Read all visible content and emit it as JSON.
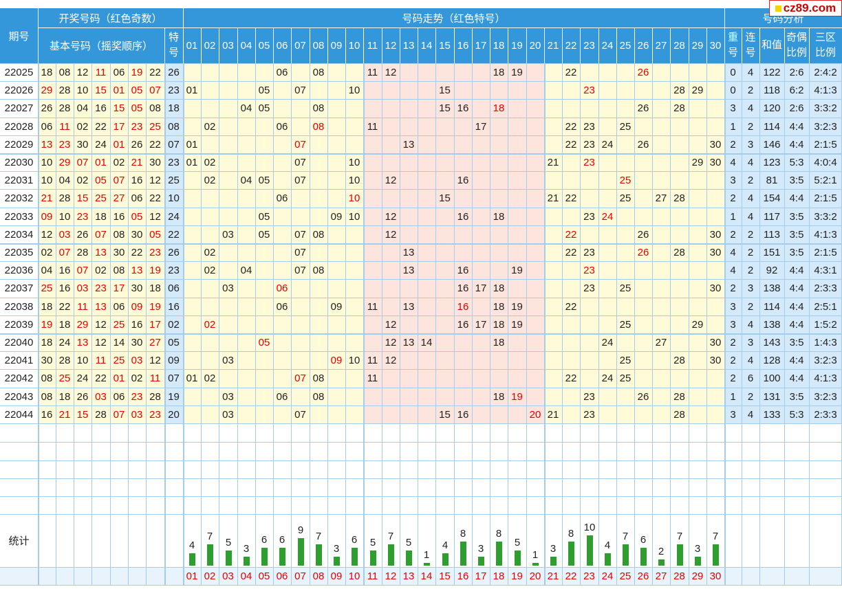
{
  "headers": {
    "period": "期号",
    "draw_group": "开奖号码（红色奇数）",
    "basic_numbers": "基本号码（摇奖顺序）",
    "special": "特号",
    "trend_group": "号码走势（红色特号）",
    "analysis_group": "号码分析",
    "repeat": "重号",
    "consecutive": "连号",
    "sum": "和值",
    "odd_even": "奇偶比例",
    "zone": "三区比例"
  },
  "trend_columns": [
    "01",
    "02",
    "03",
    "04",
    "05",
    "06",
    "07",
    "08",
    "09",
    "10",
    "11",
    "12",
    "13",
    "14",
    "15",
    "16",
    "17",
    "18",
    "19",
    "20",
    "21",
    "22",
    "23",
    "24",
    "25",
    "26",
    "27",
    "28",
    "29",
    "30"
  ],
  "rows": [
    {
      "period": "22025",
      "basic": [
        "18",
        "08",
        "12",
        "11",
        "06",
        "19",
        "22"
      ],
      "special": "26",
      "repeat": "0",
      "consec": "4",
      "sum": "122",
      "oe": "2:6",
      "zone": "2:4:2"
    },
    {
      "period": "22026",
      "basic": [
        "29",
        "28",
        "10",
        "15",
        "01",
        "05",
        "07"
      ],
      "special": "23",
      "repeat": "0",
      "consec": "2",
      "sum": "118",
      "oe": "6:2",
      "zone": "4:1:3"
    },
    {
      "period": "22027",
      "basic": [
        "26",
        "28",
        "04",
        "16",
        "15",
        "05",
        "08"
      ],
      "special": "18",
      "repeat": "3",
      "consec": "4",
      "sum": "120",
      "oe": "2:6",
      "zone": "3:3:2"
    },
    {
      "period": "22028",
      "basic": [
        "06",
        "11",
        "02",
        "22",
        "17",
        "23",
        "25"
      ],
      "special": "08",
      "repeat": "1",
      "consec": "2",
      "sum": "114",
      "oe": "4:4",
      "zone": "3:2:3"
    },
    {
      "period": "22029",
      "basic": [
        "13",
        "23",
        "30",
        "24",
        "01",
        "26",
        "22"
      ],
      "special": "07",
      "repeat": "2",
      "consec": "3",
      "sum": "146",
      "oe": "4:4",
      "zone": "2:1:5"
    },
    {
      "period": "22030",
      "basic": [
        "10",
        "29",
        "07",
        "01",
        "02",
        "21",
        "30"
      ],
      "special": "23",
      "repeat": "4",
      "consec": "4",
      "sum": "123",
      "oe": "5:3",
      "zone": "4:0:4"
    },
    {
      "period": "22031",
      "basic": [
        "10",
        "04",
        "02",
        "05",
        "07",
        "16",
        "12"
      ],
      "special": "25",
      "repeat": "3",
      "consec": "2",
      "sum": "81",
      "oe": "3:5",
      "zone": "5:2:1"
    },
    {
      "period": "22032",
      "basic": [
        "21",
        "28",
        "15",
        "25",
        "27",
        "06",
        "22"
      ],
      "special": "10",
      "repeat": "2",
      "consec": "4",
      "sum": "154",
      "oe": "4:4",
      "zone": "2:1:5"
    },
    {
      "period": "22033",
      "basic": [
        "09",
        "10",
        "23",
        "18",
        "16",
        "05",
        "12"
      ],
      "special": "24",
      "repeat": "1",
      "consec": "4",
      "sum": "117",
      "oe": "3:5",
      "zone": "3:3:2"
    },
    {
      "period": "22034",
      "basic": [
        "12",
        "03",
        "26",
        "07",
        "08",
        "30",
        "05"
      ],
      "special": "22",
      "repeat": "2",
      "consec": "2",
      "sum": "113",
      "oe": "3:5",
      "zone": "4:1:3"
    },
    {
      "period": "22035",
      "basic": [
        "02",
        "07",
        "28",
        "13",
        "30",
        "22",
        "23"
      ],
      "special": "26",
      "repeat": "4",
      "consec": "2",
      "sum": "151",
      "oe": "3:5",
      "zone": "2:1:5"
    },
    {
      "period": "22036",
      "basic": [
        "04",
        "16",
        "07",
        "02",
        "08",
        "13",
        "19"
      ],
      "special": "23",
      "repeat": "4",
      "consec": "2",
      "sum": "92",
      "oe": "4:4",
      "zone": "4:3:1"
    },
    {
      "period": "22037",
      "basic": [
        "25",
        "16",
        "03",
        "23",
        "17",
        "30",
        "18"
      ],
      "special": "06",
      "repeat": "2",
      "consec": "3",
      "sum": "138",
      "oe": "4:4",
      "zone": "2:3:3"
    },
    {
      "period": "22038",
      "basic": [
        "18",
        "22",
        "11",
        "13",
        "06",
        "09",
        "19"
      ],
      "special": "16",
      "repeat": "3",
      "consec": "2",
      "sum": "114",
      "oe": "4:4",
      "zone": "2:5:1"
    },
    {
      "period": "22039",
      "basic": [
        "19",
        "18",
        "29",
        "12",
        "25",
        "16",
        "17"
      ],
      "special": "02",
      "repeat": "3",
      "consec": "4",
      "sum": "138",
      "oe": "4:4",
      "zone": "1:5:2"
    },
    {
      "period": "22040",
      "basic": [
        "18",
        "24",
        "13",
        "12",
        "14",
        "30",
        "27"
      ],
      "special": "05",
      "repeat": "2",
      "consec": "3",
      "sum": "143",
      "oe": "3:5",
      "zone": "1:4:3"
    },
    {
      "period": "22041",
      "basic": [
        "30",
        "28",
        "10",
        "11",
        "25",
        "03",
        "12"
      ],
      "special": "09",
      "repeat": "2",
      "consec": "4",
      "sum": "128",
      "oe": "4:4",
      "zone": "3:2:3"
    },
    {
      "period": "22042",
      "basic": [
        "08",
        "25",
        "24",
        "22",
        "01",
        "02",
        "11"
      ],
      "special": "07",
      "repeat": "2",
      "consec": "6",
      "sum": "100",
      "oe": "4:4",
      "zone": "4:1:3"
    },
    {
      "period": "22043",
      "basic": [
        "08",
        "18",
        "26",
        "03",
        "06",
        "23",
        "28"
      ],
      "special": "19",
      "repeat": "1",
      "consec": "2",
      "sum": "131",
      "oe": "3:5",
      "zone": "3:2:3"
    },
    {
      "period": "22044",
      "basic": [
        "16",
        "21",
        "15",
        "28",
        "07",
        "03",
        "23"
      ],
      "special": "20",
      "repeat": "3",
      "consec": "4",
      "sum": "133",
      "oe": "5:3",
      "zone": "2:3:3"
    }
  ],
  "stats": {
    "label": "统计",
    "counts": [
      4,
      7,
      5,
      3,
      6,
      6,
      9,
      7,
      3,
      6,
      5,
      7,
      5,
      1,
      4,
      8,
      3,
      8,
      5,
      1,
      3,
      8,
      10,
      4,
      7,
      6,
      2,
      7,
      3,
      7
    ]
  },
  "logo": {
    "text": "cz89.com",
    "color": "#d00000"
  },
  "colors": {
    "header_bg": "#3497d9",
    "zone1_bg": "#fffbd9",
    "zone2_bg": "#fde4dc",
    "analysis_bg": "#d4e9f9",
    "grid": "#a3cdea",
    "odd_red": "#e60000",
    "bar_green": "#2e9e2e"
  }
}
